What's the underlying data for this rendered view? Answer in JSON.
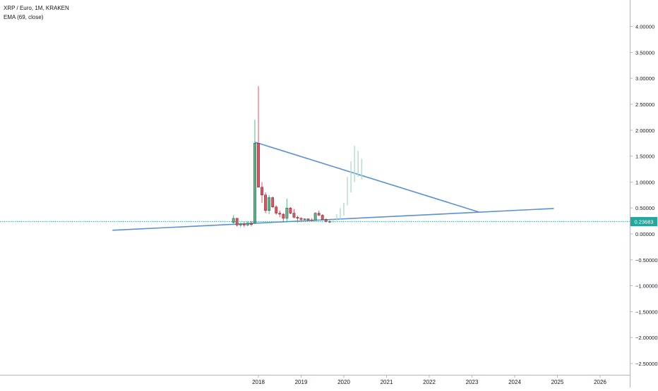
{
  "header": {
    "symbol_line": "XRP / Euro, 1M, KRAKEN",
    "indicator_line": "EMA (69, close)"
  },
  "colors": {
    "up": "#53b987",
    "down": "#eb4d5c",
    "up_light": "#a9dcc3",
    "trendline": "#5b8fd6",
    "price_line": "#26a69a",
    "price_label_bg": "#26a69a",
    "axis_text": "#131722",
    "axis_line": "#b2b5be"
  },
  "chart_data": {
    "type": "candlestick",
    "title": "XRP / Euro, 1M, KRAKEN",
    "indicator": "EMA (69, close)",
    "y_axis": {
      "range": [
        -2.75,
        4.5
      ],
      "ticks": [
        "4.00000",
        "3.50000",
        "3.00000",
        "2.50000",
        "2.00000",
        "1.50000",
        "1.00000",
        "0.50000",
        "0.00000",
        "−0.50000",
        "−1.00000",
        "−1.50000",
        "−2.00000",
        "−2.50000"
      ],
      "tick_values": [
        4.0,
        3.5,
        3.0,
        2.5,
        2.0,
        1.5,
        1.0,
        0.5,
        0.0,
        -0.5,
        -1.0,
        -1.5,
        -2.0,
        -2.5
      ]
    },
    "x_axis": {
      "range": [
        "2014-07",
        "2027-04"
      ],
      "ticks": [
        {
          "label": "2018",
          "date": "2018-01"
        },
        {
          "label": "2019",
          "date": "2019-01"
        },
        {
          "label": "2020",
          "date": "2020-01"
        },
        {
          "label": "2021",
          "date": "2021-01"
        },
        {
          "label": "2022",
          "date": "2022-01"
        },
        {
          "label": "2023",
          "date": "2023-01"
        },
        {
          "label": "2024",
          "date": "2024-01"
        },
        {
          "label": "2025",
          "date": "2025-01"
        },
        {
          "label": "2026",
          "date": "2026-01"
        }
      ]
    },
    "last_price": {
      "value": 0.23683,
      "label": "0.23683"
    },
    "candles": [
      {
        "date": "2017-06",
        "open": 0.22,
        "high": 0.36,
        "low": 0.17,
        "close": 0.3
      },
      {
        "date": "2017-07",
        "open": 0.3,
        "high": 0.31,
        "low": 0.14,
        "close": 0.17
      },
      {
        "date": "2017-08",
        "open": 0.17,
        "high": 0.22,
        "low": 0.13,
        "close": 0.19
      },
      {
        "date": "2017-09",
        "open": 0.19,
        "high": 0.23,
        "low": 0.13,
        "close": 0.17
      },
      {
        "date": "2017-10",
        "open": 0.17,
        "high": 0.25,
        "low": 0.15,
        "close": 0.21
      },
      {
        "date": "2017-11",
        "open": 0.21,
        "high": 0.25,
        "low": 0.15,
        "close": 0.18
      },
      {
        "date": "2017-12",
        "open": 0.21,
        "high": 2.2,
        "low": 0.19,
        "close": 1.75
      },
      {
        "date": "2018-01",
        "open": 1.75,
        "high": 2.85,
        "low": 0.95,
        "close": 0.9
      },
      {
        "date": "2018-02",
        "open": 0.9,
        "high": 1.0,
        "low": 0.6,
        "close": 0.75
      },
      {
        "date": "2018-03",
        "open": 0.75,
        "high": 0.8,
        "low": 0.4,
        "close": 0.45
      },
      {
        "date": "2018-04",
        "open": 0.45,
        "high": 0.75,
        "low": 0.38,
        "close": 0.7
      },
      {
        "date": "2018-05",
        "open": 0.7,
        "high": 0.72,
        "low": 0.5,
        "close": 0.52
      },
      {
        "date": "2018-06",
        "open": 0.52,
        "high": 0.55,
        "low": 0.37,
        "close": 0.4
      },
      {
        "date": "2018-07",
        "open": 0.4,
        "high": 0.45,
        "low": 0.32,
        "close": 0.38
      },
      {
        "date": "2018-08",
        "open": 0.38,
        "high": 0.4,
        "low": 0.22,
        "close": 0.3
      },
      {
        "date": "2018-09",
        "open": 0.3,
        "high": 0.68,
        "low": 0.22,
        "close": 0.5
      },
      {
        "date": "2018-10",
        "open": 0.5,
        "high": 0.52,
        "low": 0.38,
        "close": 0.4
      },
      {
        "date": "2018-11",
        "open": 0.4,
        "high": 0.48,
        "low": 0.3,
        "close": 0.32
      },
      {
        "date": "2018-12",
        "open": 0.32,
        "high": 0.35,
        "low": 0.22,
        "close": 0.3
      },
      {
        "date": "2019-01",
        "open": 0.3,
        "high": 0.32,
        "low": 0.26,
        "close": 0.28
      },
      {
        "date": "2019-02",
        "open": 0.28,
        "high": 0.3,
        "low": 0.26,
        "close": 0.29
      },
      {
        "date": "2019-03",
        "open": 0.29,
        "high": 0.3,
        "low": 0.26,
        "close": 0.27
      },
      {
        "date": "2019-04",
        "open": 0.27,
        "high": 0.3,
        "low": 0.25,
        "close": 0.26
      },
      {
        "date": "2019-05",
        "open": 0.26,
        "high": 0.42,
        "low": 0.25,
        "close": 0.4
      },
      {
        "date": "2019-06",
        "open": 0.4,
        "high": 0.45,
        "low": 0.35,
        "close": 0.36
      },
      {
        "date": "2019-07",
        "open": 0.36,
        "high": 0.38,
        "low": 0.28,
        "close": 0.28
      },
      {
        "date": "2019-08",
        "open": 0.28,
        "high": 0.3,
        "low": 0.22,
        "close": 0.24
      },
      {
        "date": "2019-09",
        "open": 0.24,
        "high": 0.26,
        "low": 0.21,
        "close": 0.237
      }
    ],
    "projection": [
      {
        "date": "2019-10",
        "low": 0.22,
        "high": 0.28
      },
      {
        "date": "2019-11",
        "low": 0.25,
        "high": 0.38
      },
      {
        "date": "2019-12",
        "low": 0.28,
        "high": 0.5
      },
      {
        "date": "2020-01",
        "low": 0.35,
        "high": 0.6
      },
      {
        "date": "2020-02",
        "low": 0.55,
        "high": 1.1
      },
      {
        "date": "2020-03",
        "low": 0.8,
        "high": 1.4
      },
      {
        "date": "2020-04",
        "low": 1.0,
        "high": 1.7
      },
      {
        "date": "2020-05",
        "low": 1.1,
        "high": 1.6
      },
      {
        "date": "2020-06",
        "low": 1.05,
        "high": 1.45
      }
    ],
    "trendlines": [
      {
        "name": "upper",
        "start": {
          "date": "2017-12",
          "value": 1.77
        },
        "end": {
          "date": "2023-03",
          "value": 0.42
        }
      },
      {
        "name": "lower",
        "start": {
          "date": "2014-08",
          "value": 0.07
        },
        "end": {
          "date": "2024-12",
          "value": 0.49
        }
      }
    ]
  }
}
